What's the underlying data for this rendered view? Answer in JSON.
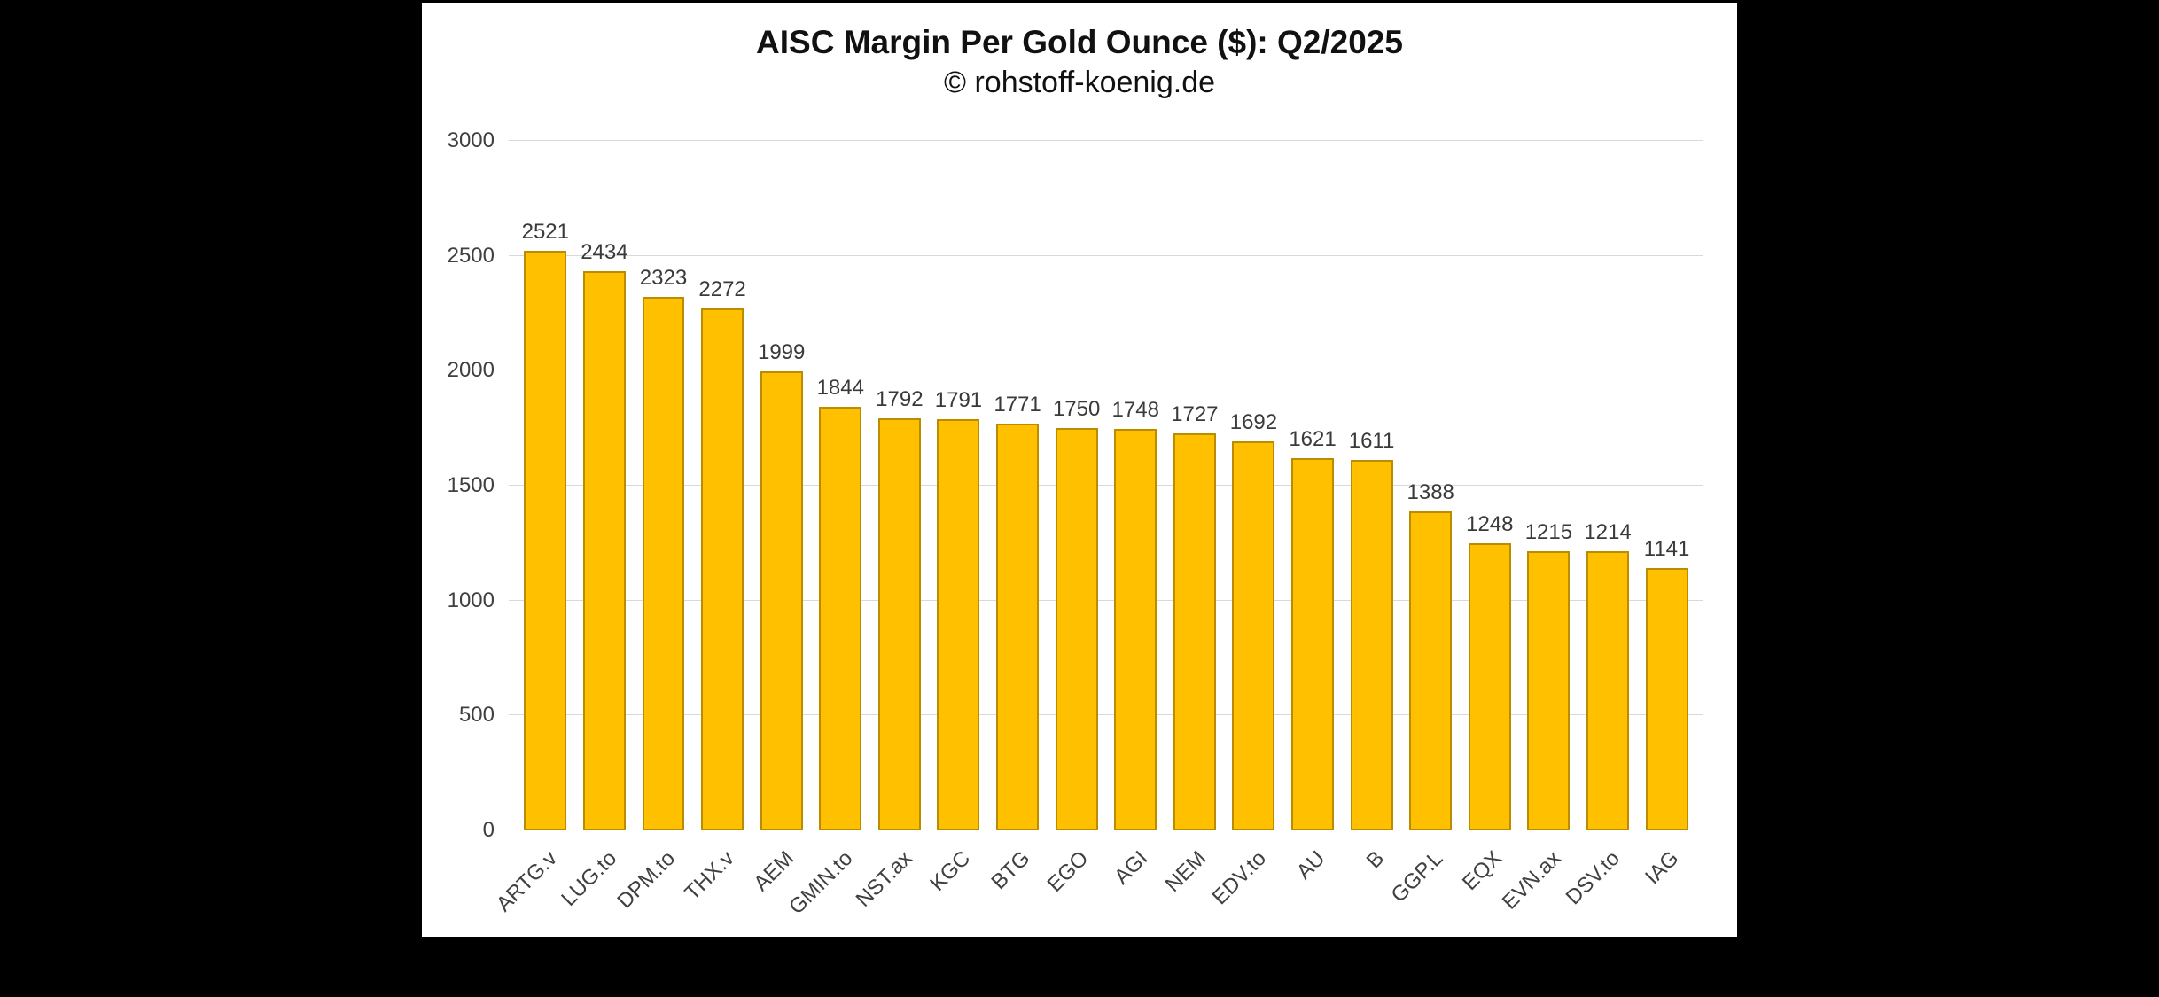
{
  "page": {
    "background_color": "#000000",
    "panel_background_color": "#ffffff"
  },
  "chart_data": {
    "type": "bar",
    "title": "AISC Margin Per Gold Ounce ($): Q2/2025",
    "subtitle": "© rohstoff-koenig.de",
    "categories": [
      "ARTG.v",
      "LUG.to",
      "DPM.to",
      "THX.v",
      "AEM",
      "GMIN.to",
      "NST.ax",
      "KGC",
      "BTG",
      "EGO",
      "AGI",
      "NEM",
      "EDV.to",
      "AU",
      "B",
      "GGP.L",
      "EQX",
      "EVN.ax",
      "DSV.to",
      "IAG"
    ],
    "values": [
      2521,
      2434,
      2323,
      2272,
      1999,
      1844,
      1792,
      1791,
      1771,
      1750,
      1748,
      1727,
      1692,
      1621,
      1611,
      1388,
      1248,
      1215,
      1214,
      1141
    ],
    "xlabel": "",
    "ylabel": "",
    "ylim": [
      0,
      3000
    ],
    "yticks": [
      0,
      500,
      1000,
      1500,
      2000,
      2500,
      3000
    ],
    "grid": true,
    "legend_position": "none",
    "bar_color": "#FFC000",
    "bar_border_color": "#BC8C00",
    "value_labels_shown": true
  }
}
